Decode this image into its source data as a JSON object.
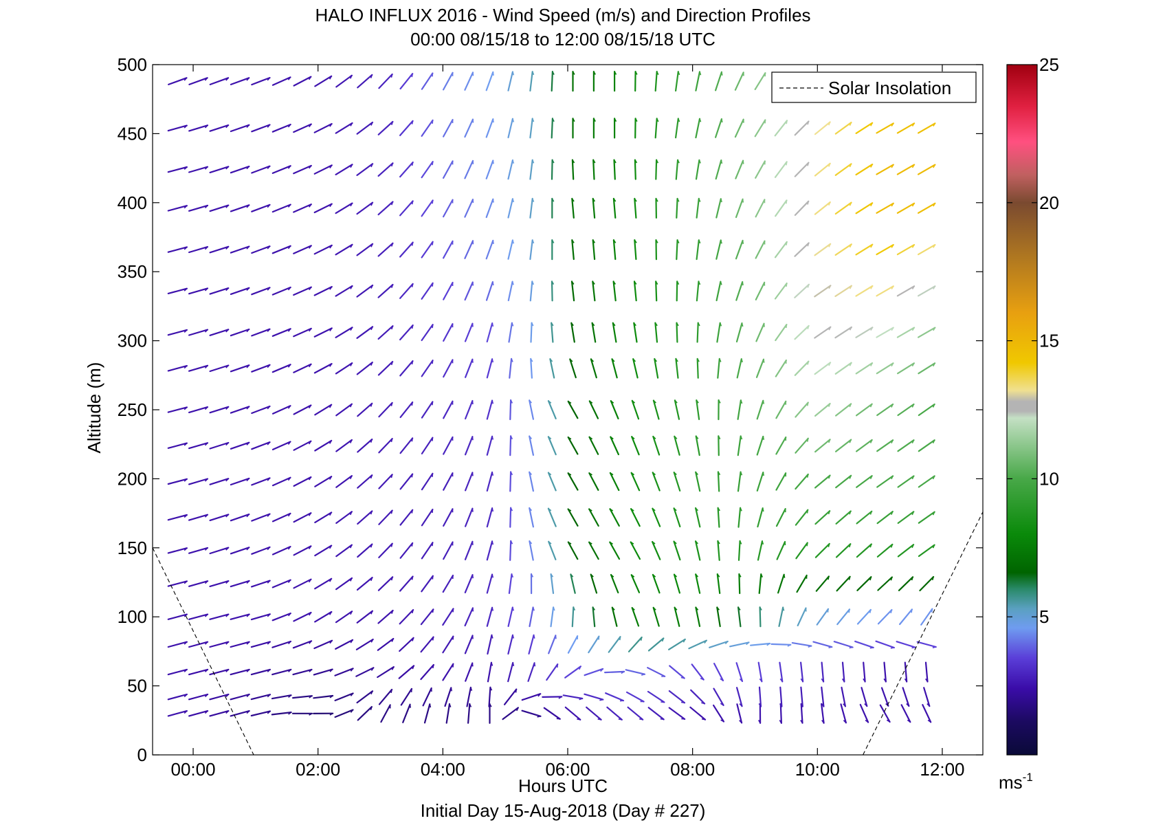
{
  "chart_data": {
    "type": "vector-field",
    "title": "HALO INFLUX 2016 - Wind Speed (m/s) and Direction Profiles",
    "subtitle": "00:00 08/15/18 to 12:00 08/15/18  UTC",
    "xlabel": "Hours UTC",
    "xlabel2": "Initial Day 15-Aug-2018 (Day # 227)",
    "ylabel": "Altitude (m)",
    "xlim": [
      -0.65,
      12.65
    ],
    "ylim": [
      0,
      500
    ],
    "xticks": [
      {
        "value": 0,
        "label": "00:00"
      },
      {
        "value": 2,
        "label": "02:00"
      },
      {
        "value": 4,
        "label": "04:00"
      },
      {
        "value": 6,
        "label": "06:00"
      },
      {
        "value": 8,
        "label": "08:00"
      },
      {
        "value": 10,
        "label": "10:00"
      },
      {
        "value": 12,
        "label": "12:00"
      }
    ],
    "yticks": [
      0,
      50,
      100,
      150,
      200,
      250,
      300,
      350,
      400,
      450,
      500
    ],
    "colorbar": {
      "min": 0,
      "max": 25,
      "ticks": [
        5,
        10,
        15,
        20,
        25
      ],
      "unit_base": "ms",
      "unit_exp": "-1",
      "stops": [
        {
          "v": 0,
          "c": "#0a0a38"
        },
        {
          "v": 1.2,
          "c": "#1b0a60"
        },
        {
          "v": 2.4,
          "c": "#3a0ca8"
        },
        {
          "v": 3.5,
          "c": "#5a3ed8"
        },
        {
          "v": 4.6,
          "c": "#6f9cf0"
        },
        {
          "v": 5.3,
          "c": "#5aa0c0"
        },
        {
          "v": 6.0,
          "c": "#2a8a6a"
        },
        {
          "v": 6.6,
          "c": "#006400"
        },
        {
          "v": 8.0,
          "c": "#0a8a0a"
        },
        {
          "v": 10.0,
          "c": "#48a848"
        },
        {
          "v": 12.2,
          "c": "#c4e0c4"
        },
        {
          "v": 12.45,
          "c": "#b4b4b4"
        },
        {
          "v": 12.8,
          "c": "#b4b4b4"
        },
        {
          "v": 13.2,
          "c": "#f0e090"
        },
        {
          "v": 14.2,
          "c": "#f0c800"
        },
        {
          "v": 16.0,
          "c": "#e8a010"
        },
        {
          "v": 18.0,
          "c": "#b07820"
        },
        {
          "v": 20.0,
          "c": "#7a4a30"
        },
        {
          "v": 21.0,
          "c": "#c06060"
        },
        {
          "v": 22.2,
          "c": "#ff5080"
        },
        {
          "v": 23.5,
          "c": "#e02040"
        },
        {
          "v": 25.0,
          "c": "#a00010"
        }
      ]
    },
    "legend": {
      "label": "Solar Insolation",
      "placement": "top-right",
      "style": "dashed"
    },
    "solar_insolation": [
      {
        "segment": "morning",
        "points": [
          [
            -0.65,
            150
          ],
          [
            0.97,
            0
          ]
        ]
      },
      {
        "segment": "evening",
        "points": [
          [
            10.73,
            0
          ],
          [
            12.65,
            176
          ]
        ]
      }
    ],
    "times_hours": [
      -0.25,
      0.083,
      0.417,
      0.75,
      1.083,
      1.417,
      1.75,
      2.083,
      2.417,
      2.75,
      3.083,
      3.417,
      3.75,
      4.083,
      4.417,
      4.75,
      5.083,
      5.417,
      5.75,
      6.083,
      6.417,
      6.75,
      7.083,
      7.417,
      7.75,
      8.083,
      8.417,
      8.75,
      9.083,
      9.417,
      9.75,
      10.083,
      10.417,
      10.75,
      11.083,
      11.417,
      11.75
    ],
    "altitudes_m": [
      30,
      42,
      60,
      80,
      100,
      124,
      148,
      172,
      198,
      224,
      250,
      280,
      306,
      336,
      366,
      396,
      424,
      454,
      488
    ],
    "vectors_note": "direction_deg = screen angle of arrow (0 = pointing up/north, 90 = pointing right/east); speed in m/s",
    "keyframes": {
      "altitudes_m": [
        30,
        60,
        100,
        150,
        200,
        250,
        300,
        350,
        400,
        450,
        488
      ],
      "times_hours": [
        -0.25,
        1,
        2,
        3,
        4,
        4.75,
        5.5,
        6,
        7,
        8,
        9,
        10,
        11,
        11.75
      ],
      "direction_deg": [
        [
          75,
          75,
          95,
          30,
          10,
          0,
          120,
          130,
          130,
          125,
          180,
          175,
          150,
          155
        ],
        [
          75,
          75,
          75,
          60,
          35,
          10,
          20,
          50,
          100,
          140,
          170,
          175,
          175,
          175
        ],
        [
          75,
          75,
          60,
          50,
          35,
          15,
          10,
          5,
          340,
          348,
          355,
          35,
          45,
          35
        ],
        [
          75,
          70,
          60,
          45,
          30,
          15,
          345,
          330,
          330,
          345,
          10,
          45,
          50,
          55
        ],
        [
          75,
          70,
          60,
          45,
          30,
          15,
          345,
          330,
          335,
          345,
          15,
          50,
          55,
          55
        ],
        [
          75,
          70,
          60,
          45,
          30,
          15,
          345,
          330,
          340,
          350,
          15,
          50,
          55,
          55
        ],
        [
          75,
          70,
          65,
          50,
          30,
          15,
          0,
          350,
          350,
          0,
          20,
          55,
          60,
          60
        ],
        [
          75,
          70,
          65,
          50,
          30,
          20,
          5,
          355,
          355,
          5,
          25,
          55,
          60,
          60
        ],
        [
          75,
          70,
          65,
          50,
          30,
          20,
          5,
          355,
          355,
          5,
          25,
          50,
          60,
          60
        ],
        [
          75,
          70,
          65,
          50,
          30,
          20,
          5,
          0,
          0,
          10,
          30,
          50,
          60,
          60
        ],
        [
          70,
          70,
          60,
          45,
          30,
          20,
          5,
          0,
          0,
          10,
          30,
          50,
          60,
          60
        ]
      ],
      "speed_ms": [
        [
          2.5,
          2.0,
          1.5,
          1.8,
          1.8,
          1.8,
          2.0,
          2.5,
          3.0,
          2.5,
          2.5,
          2.5,
          2.5,
          2.5
        ],
        [
          2.5,
          2.2,
          2.0,
          2.2,
          2.5,
          2.5,
          3.0,
          3.5,
          4.0,
          3.5,
          3.5,
          3.0,
          2.5,
          2.5
        ],
        [
          2.5,
          2.5,
          2.5,
          2.5,
          2.8,
          3.0,
          4.0,
          5.5,
          7.5,
          7.5,
          6.0,
          5.0,
          4.5,
          4.5
        ],
        [
          2.5,
          2.5,
          2.5,
          2.7,
          2.8,
          3.0,
          4.5,
          6.5,
          8.0,
          8.5,
          9.0,
          9.0,
          9.0,
          9.0
        ],
        [
          2.5,
          2.5,
          2.5,
          2.7,
          2.8,
          3.0,
          4.5,
          6.5,
          8.0,
          9.0,
          9.5,
          10.0,
          10.0,
          10.0
        ],
        [
          2.5,
          2.5,
          2.5,
          2.7,
          3.0,
          3.2,
          4.5,
          6.5,
          8.0,
          9.0,
          10.0,
          11.5,
          10.5,
          10.0
        ],
        [
          2.5,
          2.5,
          2.5,
          2.7,
          3.2,
          3.5,
          4.8,
          6.5,
          8.0,
          9.0,
          10.5,
          12.5,
          12.0,
          11.0
        ],
        [
          2.5,
          2.5,
          2.5,
          2.7,
          3.5,
          4.2,
          5.0,
          6.8,
          8.0,
          9.0,
          10.5,
          13.0,
          14.0,
          12.8
        ],
        [
          2.5,
          2.5,
          2.5,
          2.8,
          3.8,
          4.4,
          5.3,
          7.0,
          8.0,
          9.5,
          11.0,
          13.2,
          14.8,
          14.8
        ],
        [
          2.5,
          2.5,
          2.5,
          2.8,
          4.0,
          4.5,
          5.3,
          7.0,
          8.0,
          9.5,
          11.0,
          13.2,
          14.8,
          14.8
        ],
        [
          2.5,
          2.5,
          2.5,
          2.8,
          4.2,
          4.6,
          5.5,
          7.0,
          8.0,
          9.5,
          11.0,
          12.0,
          12.5,
          12.5
        ]
      ]
    }
  }
}
